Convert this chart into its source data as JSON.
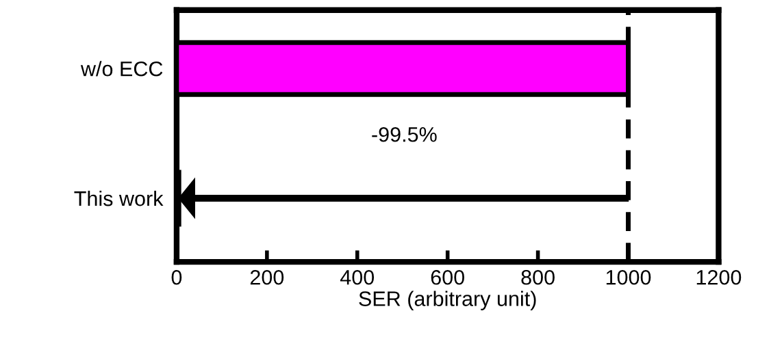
{
  "chart_data": {
    "type": "bar",
    "orientation": "horizontal",
    "xlabel": "SER (arbitrary unit)",
    "categories": [
      "w/o ECC",
      "This work"
    ],
    "values": [
      1000,
      5
    ],
    "colors": [
      "#ff00ff",
      "#000000"
    ],
    "xlim": [
      0,
      1200
    ],
    "xticks": [
      0,
      200,
      400,
      600,
      800,
      1000,
      1200
    ],
    "grid": false,
    "legend": false,
    "ref_lines": [
      {
        "axis": "x",
        "value": 1000,
        "line_style": "dashed",
        "color": "#000000"
      }
    ],
    "annotations": [
      "-99.5%"
    ]
  }
}
